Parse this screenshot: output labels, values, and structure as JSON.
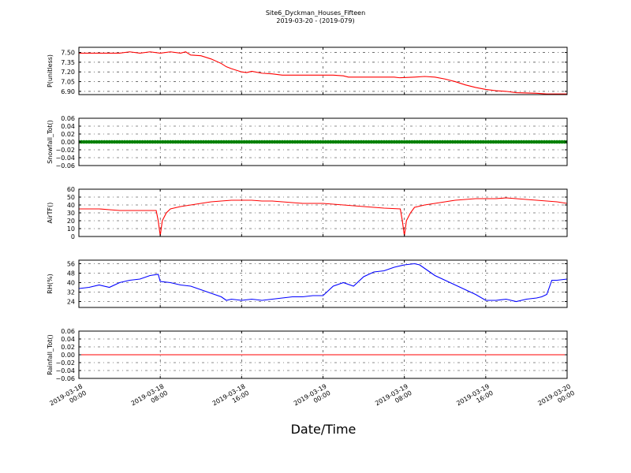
{
  "figure": {
    "title_line1": "Site6_Dyckman_Houses_Fifteen",
    "title_line2": "2019-03-20 - (2019-079)",
    "xlabel": "Date/Time"
  },
  "chart_data": {
    "type": "line",
    "x_ticks": [
      {
        "hour": 0,
        "line1": "2019-03-18",
        "line2": "00:00"
      },
      {
        "hour": 8,
        "line1": "2019-03-18",
        "line2": "08:00"
      },
      {
        "hour": 16,
        "line1": "2019-03-18",
        "line2": "16:00"
      },
      {
        "hour": 24,
        "line1": "2019-03-19",
        "line2": "00:00"
      },
      {
        "hour": 32,
        "line1": "2019-03-19",
        "line2": "08:00"
      },
      {
        "hour": 40,
        "line1": "2019-03-19",
        "line2": "16:00"
      },
      {
        "hour": 48,
        "line1": "2019-03-20",
        "line2": "00:00"
      }
    ],
    "xlim_hours": [
      0,
      48
    ],
    "panels": [
      {
        "id": "pressure",
        "ylabel": "P(unitless)",
        "color": "#ff0000",
        "ylim": [
          6.85,
          7.58
        ],
        "yticks": [
          6.9,
          7.05,
          7.2,
          7.35,
          7.5
        ],
        "ytick_labels": [
          "6.90",
          "7.05",
          "7.20",
          "7.35",
          "7.50"
        ],
        "points": [
          [
            0,
            7.49
          ],
          [
            2,
            7.49
          ],
          [
            4,
            7.49
          ],
          [
            5,
            7.51
          ],
          [
            6,
            7.49
          ],
          [
            7,
            7.51
          ],
          [
            8,
            7.49
          ],
          [
            9,
            7.51
          ],
          [
            10,
            7.49
          ],
          [
            10.5,
            7.51
          ],
          [
            11,
            7.46
          ],
          [
            12,
            7.45
          ],
          [
            13,
            7.4
          ],
          [
            14,
            7.33
          ],
          [
            14.5,
            7.28
          ],
          [
            15,
            7.25
          ],
          [
            16,
            7.2
          ],
          [
            16.5,
            7.19
          ],
          [
            17,
            7.21
          ],
          [
            18,
            7.18
          ],
          [
            19,
            7.17
          ],
          [
            20,
            7.15
          ],
          [
            21,
            7.15
          ],
          [
            23,
            7.15
          ],
          [
            25,
            7.15
          ],
          [
            26,
            7.14
          ],
          [
            26.5,
            7.12
          ],
          [
            29,
            7.12
          ],
          [
            30,
            7.12
          ],
          [
            31,
            7.12
          ],
          [
            31.5,
            7.11
          ],
          [
            33,
            7.12
          ],
          [
            34,
            7.13
          ],
          [
            35,
            7.12
          ],
          [
            36,
            7.09
          ],
          [
            37,
            7.05
          ],
          [
            38,
            7.0
          ],
          [
            39,
            6.96
          ],
          [
            40,
            6.93
          ],
          [
            41,
            6.91
          ],
          [
            42,
            6.9
          ],
          [
            43,
            6.88
          ],
          [
            45,
            6.87
          ],
          [
            46,
            6.86
          ],
          [
            48,
            6.86
          ]
        ]
      },
      {
        "id": "snowfall",
        "ylabel": "Snowfall_Tot()",
        "color": "#008000",
        "ylim": [
          -0.06,
          0.06
        ],
        "yticks": [
          -0.06,
          -0.04,
          -0.02,
          0.0,
          0.02,
          0.04,
          0.06
        ],
        "ytick_labels": [
          "−0.06",
          "−0.04",
          "−0.02",
          "0.00",
          "0.02",
          "0.04",
          "0.06"
        ],
        "constant": 0,
        "style": "markers"
      },
      {
        "id": "airtf",
        "ylabel": "AirTF()",
        "color": "#ff0000",
        "ylim": [
          0,
          60
        ],
        "yticks": [
          0,
          10,
          20,
          30,
          40,
          50,
          60
        ],
        "ytick_labels": [
          "0",
          "10",
          "20",
          "30",
          "40",
          "50",
          "60"
        ],
        "points": [
          [
            0,
            35
          ],
          [
            2,
            35
          ],
          [
            3,
            34
          ],
          [
            4,
            33
          ],
          [
            6,
            33
          ],
          [
            7.6,
            33
          ],
          [
            7.8,
            20
          ],
          [
            8.0,
            1
          ],
          [
            8.2,
            20
          ],
          [
            8.6,
            30
          ],
          [
            9,
            35
          ],
          [
            10,
            38
          ],
          [
            11,
            40
          ],
          [
            12,
            42
          ],
          [
            13,
            44
          ],
          [
            14,
            45
          ],
          [
            15,
            46
          ],
          [
            16,
            46
          ],
          [
            17,
            46
          ],
          [
            18,
            45
          ],
          [
            19,
            45
          ],
          [
            20,
            44
          ],
          [
            22,
            42
          ],
          [
            24,
            42
          ],
          [
            26,
            40
          ],
          [
            28,
            38
          ],
          [
            30,
            36
          ],
          [
            31.6,
            35
          ],
          [
            31.8,
            20
          ],
          [
            32.0,
            1
          ],
          [
            32.2,
            20
          ],
          [
            32.6,
            30
          ],
          [
            33,
            37
          ],
          [
            34,
            40
          ],
          [
            35,
            42
          ],
          [
            36,
            44
          ],
          [
            37,
            46
          ],
          [
            38,
            47
          ],
          [
            39,
            48
          ],
          [
            40,
            48
          ],
          [
            41,
            48
          ],
          [
            42,
            49
          ],
          [
            43,
            48
          ],
          [
            44,
            47
          ],
          [
            45,
            46
          ],
          [
            46,
            45
          ],
          [
            47,
            44
          ],
          [
            48,
            42
          ]
        ]
      },
      {
        "id": "rh",
        "ylabel": "RH(%)",
        "color": "#0000ff",
        "ylim": [
          19,
          59
        ],
        "yticks": [
          24,
          32,
          40,
          48,
          56
        ],
        "ytick_labels": [
          "24",
          "32",
          "40",
          "48",
          "56"
        ],
        "points": [
          [
            0,
            35
          ],
          [
            1,
            36
          ],
          [
            2,
            38
          ],
          [
            3,
            36
          ],
          [
            4,
            40
          ],
          [
            5,
            42
          ],
          [
            6,
            43
          ],
          [
            7,
            46
          ],
          [
            7.8,
            47
          ],
          [
            8,
            41
          ],
          [
            9,
            40
          ],
          [
            10,
            38
          ],
          [
            11,
            37
          ],
          [
            12,
            34
          ],
          [
            13,
            31
          ],
          [
            14,
            28
          ],
          [
            14.5,
            25
          ],
          [
            15,
            26
          ],
          [
            16,
            25
          ],
          [
            17,
            26
          ],
          [
            18,
            25
          ],
          [
            19,
            26
          ],
          [
            20,
            27
          ],
          [
            21,
            28
          ],
          [
            22,
            28
          ],
          [
            23,
            29
          ],
          [
            24,
            29
          ],
          [
            24.5,
            33
          ],
          [
            25,
            37
          ],
          [
            26,
            40
          ],
          [
            27,
            37
          ],
          [
            28,
            45
          ],
          [
            29,
            49
          ],
          [
            30,
            50
          ],
          [
            31,
            53
          ],
          [
            32,
            55
          ],
          [
            33,
            56
          ],
          [
            33.5,
            55
          ],
          [
            34,
            52
          ],
          [
            35,
            46
          ],
          [
            36,
            42
          ],
          [
            37,
            38
          ],
          [
            38,
            34
          ],
          [
            39,
            30
          ],
          [
            40,
            25
          ],
          [
            41,
            25
          ],
          [
            42,
            26
          ],
          [
            43,
            24
          ],
          [
            44,
            26
          ],
          [
            45,
            27
          ],
          [
            45.5,
            28
          ],
          [
            46,
            30
          ],
          [
            46.5,
            42
          ],
          [
            47,
            42
          ],
          [
            48,
            43
          ]
        ]
      },
      {
        "id": "rainfall",
        "ylabel": "Rainfall_Tot()",
        "color": "#ff0000",
        "ylim": [
          -0.06,
          0.06
        ],
        "yticks": [
          -0.06,
          -0.04,
          -0.02,
          0.0,
          0.02,
          0.04,
          0.06
        ],
        "ytick_labels": [
          "−0.06",
          "−0.04",
          "−0.02",
          "0.00",
          "0.02",
          "0.04",
          "0.06"
        ],
        "constant": 0,
        "style": "line"
      }
    ]
  }
}
